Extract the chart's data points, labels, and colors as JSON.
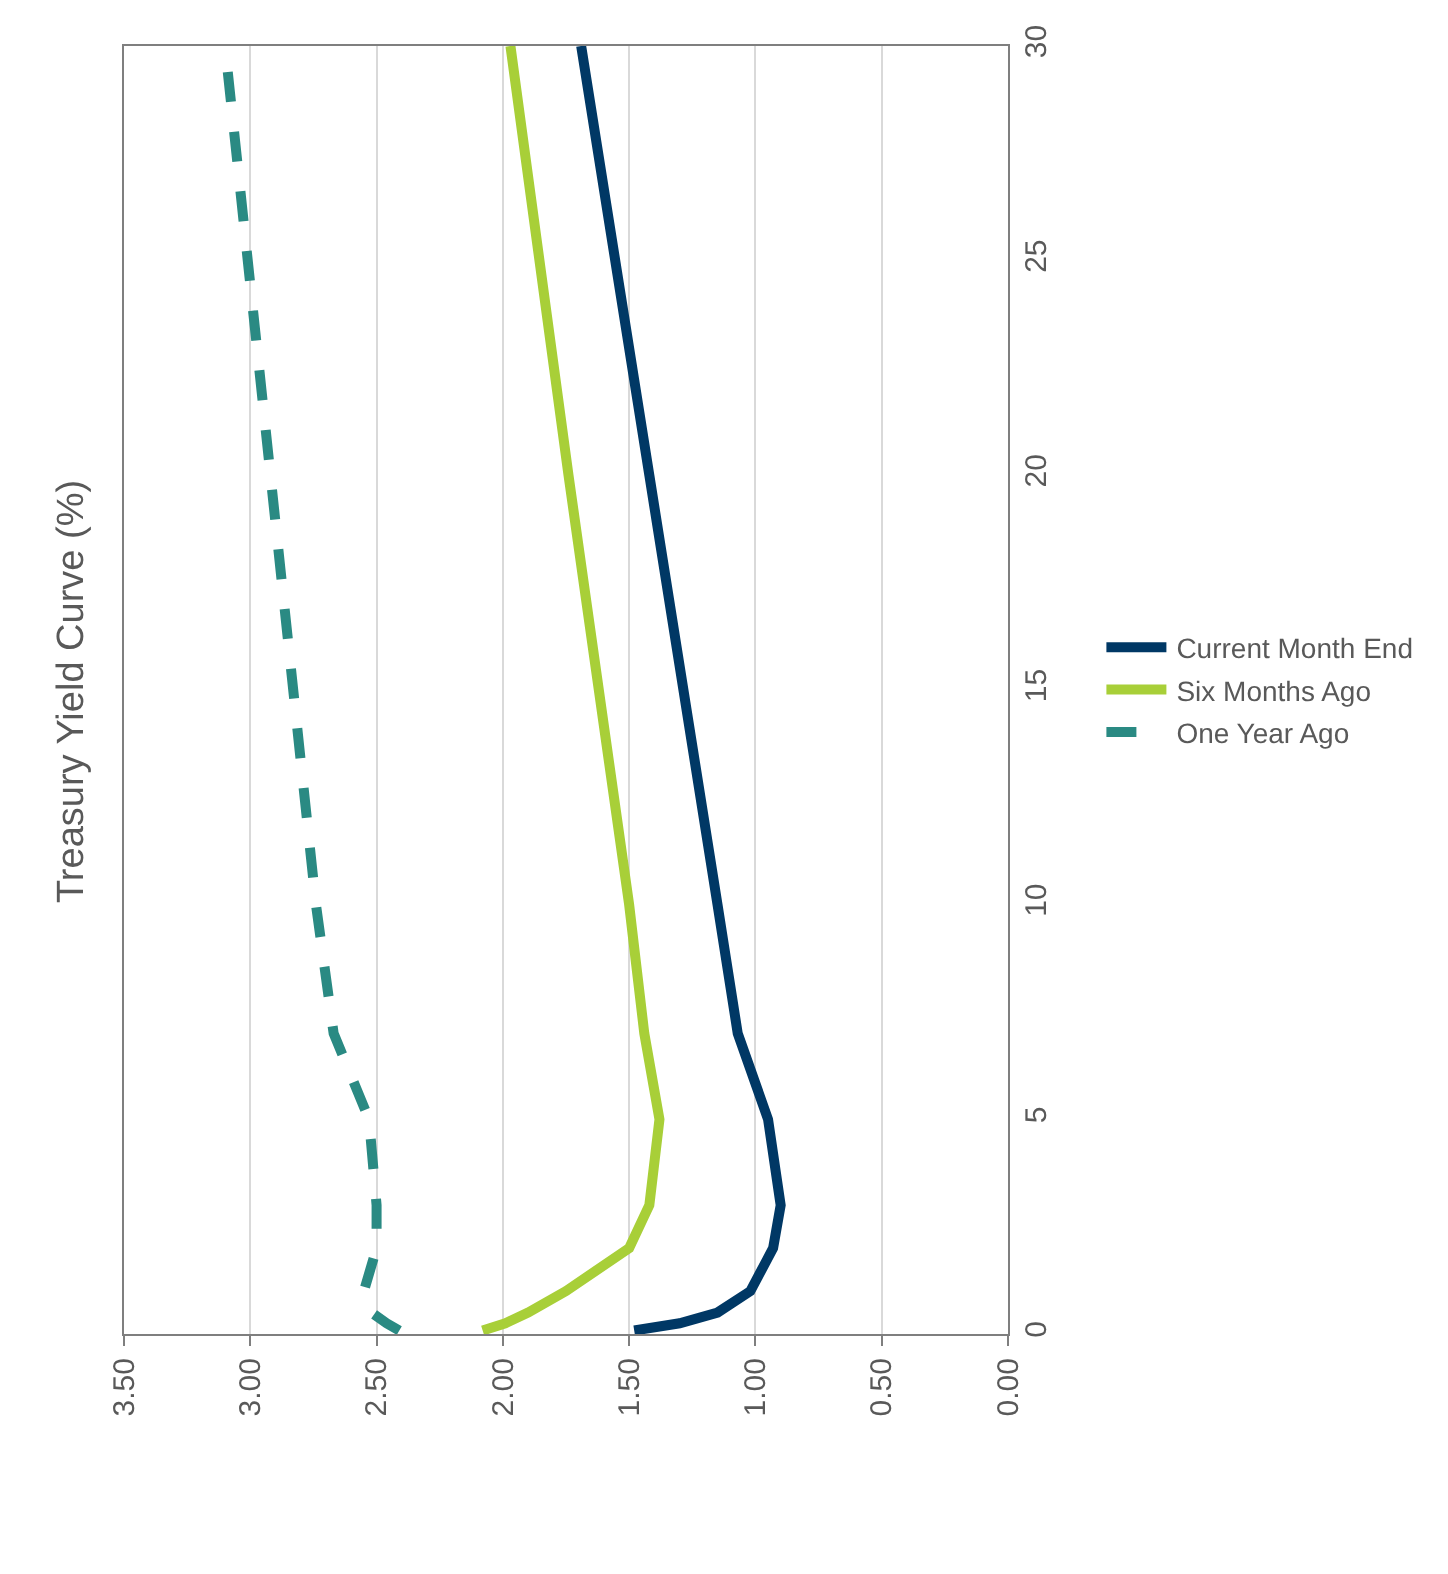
{
  "chart_data": {
    "type": "line",
    "title": "Treasury Yield Curve (%)",
    "orientation": "horizontal",
    "x": [
      0.08,
      0.25,
      0.5,
      1,
      2,
      3,
      5,
      7,
      10,
      20,
      30
    ],
    "series": [
      {
        "name": "Current Month End",
        "color": "#003865",
        "line_style": "solid",
        "values": [
          1.48,
          1.3,
          1.15,
          1.02,
          0.93,
          0.9,
          0.95,
          1.07,
          1.15,
          1.42,
          1.69
        ]
      },
      {
        "name": "Six Months Ago",
        "color": "#a8cf38",
        "line_style": "solid",
        "values": [
          2.08,
          1.99,
          1.9,
          1.75,
          1.5,
          1.42,
          1.38,
          1.44,
          1.5,
          1.74,
          1.97
        ]
      },
      {
        "name": "One Year Ago",
        "color": "#2a8a83",
        "line_style": "dashed",
        "values": [
          2.41,
          2.46,
          2.52,
          2.55,
          2.5,
          2.5,
          2.53,
          2.67,
          2.74,
          2.92,
          3.1
        ]
      }
    ],
    "xlim": [
      3.5,
      0
    ],
    "xticks": [
      {
        "value": 3.5,
        "label": "3.50"
      },
      {
        "value": 3,
        "label": "3.00"
      },
      {
        "value": 2.5,
        "label": "2.50"
      },
      {
        "value": 2,
        "label": "2.00"
      },
      {
        "value": 1.5,
        "label": "1.50"
      },
      {
        "value": 1,
        "label": "1.00"
      },
      {
        "value": 0.5,
        "label": "0.50"
      },
      {
        "value": 0,
        "label": "0.00"
      }
    ],
    "ylim": [
      0,
      30
    ],
    "yticks": [
      0,
      5,
      10,
      15,
      20,
      25,
      30
    ],
    "grid": "x",
    "legend": "right",
    "marker": "none"
  }
}
